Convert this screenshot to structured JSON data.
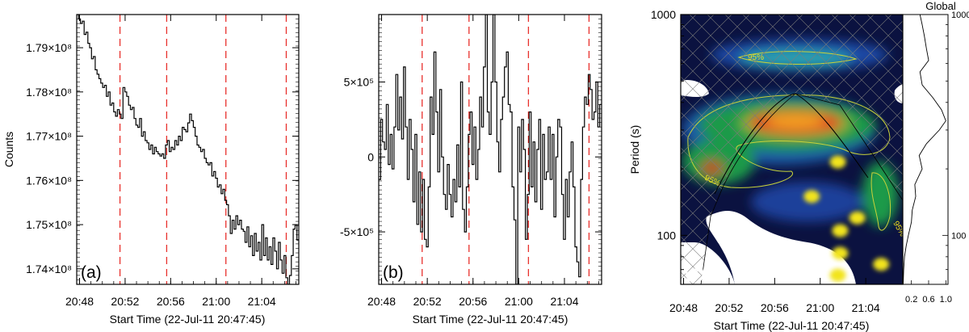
{
  "chart_data": [
    {
      "type": "line",
      "panel_label": "(a)",
      "ylabel": "Counts",
      "xlabel": "Start Time (22-Jul-11 20:47:45)",
      "x_ticks": [
        "20:48",
        "20:52",
        "20:56",
        "21:00",
        "21:04"
      ],
      "y_ticks": [
        "1.74×10⁸",
        "1.75×10⁸",
        "1.76×10⁸",
        "1.77×10⁸",
        "1.78×10⁸",
        "1.79×10⁸"
      ],
      "x_tick_values": [
        0.25,
        4.25,
        8.25,
        12.25,
        16.25
      ],
      "y_tick_values": [
        1.74,
        1.75,
        1.76,
        1.77,
        1.78,
        1.79
      ],
      "xlim": [
        0,
        19.5
      ],
      "ylim": [
        1.7365,
        1.7975
      ],
      "y_unit_note": "values in units of 1e8 counts",
      "vlines": [
        3.8,
        7.9,
        13.1,
        18.4
      ],
      "vline_color": "#e8302c",
      "series": [
        {
          "values": [
            1.7975,
            1.7965,
            1.7955,
            1.796,
            1.793,
            1.7935,
            1.791,
            1.79,
            1.7875,
            1.788,
            1.785,
            1.784,
            1.783,
            1.782,
            1.781,
            1.7815,
            1.779,
            1.78,
            1.777,
            1.7775,
            1.7755,
            1.7745,
            1.776,
            1.775,
            1.774,
            1.781,
            1.78,
            1.779,
            1.777,
            1.776,
            1.7765,
            1.774,
            1.7725,
            1.772,
            1.774,
            1.77,
            1.771,
            1.769,
            1.7685,
            1.767,
            1.768,
            1.766,
            1.7675,
            1.7665,
            1.766,
            1.7655,
            1.766,
            1.765,
            1.768,
            1.769,
            1.7665,
            1.7675,
            1.767,
            1.769,
            1.768,
            1.77,
            1.769,
            1.772,
            1.7715,
            1.771,
            1.773,
            1.775,
            1.7735,
            1.772,
            1.77,
            1.768,
            1.7675,
            1.7665,
            1.767,
            1.765,
            1.764,
            1.7635,
            1.764,
            1.761,
            1.762,
            1.7605,
            1.7585,
            1.759,
            1.757,
            1.758,
            1.7555,
            1.7545,
            1.752,
            1.748,
            1.751,
            1.749,
            1.752,
            1.75,
            1.751,
            1.749,
            1.7485,
            1.746,
            1.7495,
            1.745,
            1.7475,
            1.743,
            1.748,
            1.744,
            1.746,
            1.742,
            1.75,
            1.743,
            1.747,
            1.742,
            1.745,
            1.741,
            1.747,
            1.744,
            1.74,
            1.746,
            1.742,
            1.739,
            1.743,
            1.738,
            1.7365,
            1.7385,
            1.743,
            1.749,
            1.75,
            1.7465
          ]
        }
      ]
    },
    {
      "type": "line",
      "panel_label": "(b)",
      "xlabel": "Start Time (22-Jul-11 20:47:45)",
      "x_ticks": [
        "20:48",
        "20:52",
        "20:56",
        "21:00",
        "21:04"
      ],
      "y_ticks": [
        "-5×10⁵",
        "0",
        "5×10⁵"
      ],
      "x_tick_values": [
        0.25,
        4.25,
        8.25,
        12.25,
        16.25
      ],
      "y_tick_values": [
        -500000,
        0,
        500000
      ],
      "xlim": [
        0,
        19.5
      ],
      "ylim": [
        -850000,
        950000
      ],
      "vlines": [
        3.8,
        7.9,
        13.1,
        18.4
      ],
      "vline_color": "#e8302c",
      "series": [
        {
          "values": [
            -150000,
            250000,
            100000,
            50000,
            350000,
            -50000,
            150000,
            -80000,
            200000,
            550000,
            180000,
            400000,
            120000,
            600000,
            200000,
            -150000,
            250000,
            50000,
            -300000,
            150000,
            -450000,
            -100000,
            -500000,
            -150000,
            -550000,
            -600000,
            -200000,
            400000,
            150000,
            700000,
            300000,
            -100000,
            450000,
            0,
            -250000,
            -350000,
            -50000,
            -250000,
            -400000,
            -150000,
            -300000,
            80000,
            -200000,
            500000,
            -350000,
            -500000,
            -200000,
            150000,
            300000,
            -50000,
            200000,
            -150000,
            50000,
            400000,
            200000,
            600000,
            950000,
            300000,
            150000,
            500000,
            950000,
            500000,
            100000,
            -100000,
            250000,
            400000,
            600000,
            700000,
            350000,
            300000,
            -200000,
            -420000,
            -850000,
            200000,
            -100000,
            250000,
            50000,
            -550000,
            -250000,
            300000,
            -200000,
            100000,
            -300000,
            50000,
            250000,
            -350000,
            150000,
            -150000,
            -100000,
            200000,
            -150000,
            150000,
            -400000,
            0,
            250000,
            200000,
            -250000,
            -550000,
            -150000,
            -400000,
            -100000,
            100000,
            -200000,
            -600000,
            -700000,
            -800000,
            -150000,
            200000,
            400000,
            350000,
            550000,
            450000,
            250000,
            300000,
            500000,
            200000,
            350000
          ]
        }
      ]
    },
    {
      "type": "heatmap",
      "panel_label": "(c)",
      "ylabel": "Period (s)",
      "xlabel": "Start Time (22-Jul-11 20:47:45)",
      "x_ticks": [
        "20:48",
        "20:52",
        "20:56",
        "21:00",
        "21:04"
      ],
      "x_tick_values": [
        0.25,
        4.25,
        8.25,
        12.25,
        16.25
      ],
      "xlim": [
        0,
        19.5
      ],
      "y_scale": "log",
      "y_ticks": [
        "100",
        "1000"
      ],
      "y_tick_values": [
        100,
        1000
      ],
      "ylim": [
        60,
        1000
      ],
      "contour_label": "95%",
      "colorscale": [
        "#0a0f38",
        "#1f3f9a",
        "#1aa0b8",
        "#1e8c3c",
        "#4aa84a",
        "#d23c1c",
        "#f0502a",
        "#f2e41c"
      ],
      "features": [
        {
          "kind": "peak",
          "center_x": 11.0,
          "center_period": 330,
          "level": "max"
        },
        {
          "kind": "band",
          "center_x": 11.5,
          "center_period": 700,
          "level": "mid",
          "contour": "95%"
        },
        {
          "kind": "spot",
          "center_x": 4.0,
          "center_period": 215,
          "level": "high"
        },
        {
          "kind": "blob",
          "x": 13.8,
          "period": 215,
          "level": "max"
        },
        {
          "kind": "blob",
          "x": 11.5,
          "period": 150,
          "level": "max"
        },
        {
          "kind": "blob",
          "x": 15.5,
          "period": 120,
          "level": "max"
        },
        {
          "kind": "blob",
          "x": 14.0,
          "period": 105,
          "level": "max"
        },
        {
          "kind": "blob",
          "x": 14.0,
          "period": 83,
          "level": "max"
        },
        {
          "kind": "blob",
          "x": 13.8,
          "period": 66,
          "level": "max"
        },
        {
          "kind": "blob",
          "x": 17.6,
          "period": 74,
          "level": "max"
        }
      ],
      "cone_of_influence": true,
      "global_spectrum": {
        "title": "Global",
        "x_ticks": [
          "0.2",
          "0.6",
          "1.0"
        ],
        "x_tick_values": [
          0.2,
          0.6,
          1.0
        ],
        "xlim": [
          0,
          1.05
        ],
        "y_ticks": [
          "100",
          "1000"
        ],
        "y_tick_values": [
          100,
          1000
        ],
        "periods": [
          60,
          70,
          80,
          90,
          100,
          115,
          130,
          150,
          170,
          200,
          230,
          260,
          300,
          330,
          370,
          420,
          480,
          550,
          620,
          700,
          800,
          900,
          1000
        ],
        "power": [
          0.01,
          0.02,
          0.04,
          0.08,
          0.13,
          0.2,
          0.22,
          0.3,
          0.28,
          0.45,
          0.38,
          0.55,
          0.85,
          1.0,
          0.9,
          0.7,
          0.45,
          0.4,
          0.6,
          0.55,
          0.5,
          0.45,
          0.4
        ]
      }
    }
  ]
}
